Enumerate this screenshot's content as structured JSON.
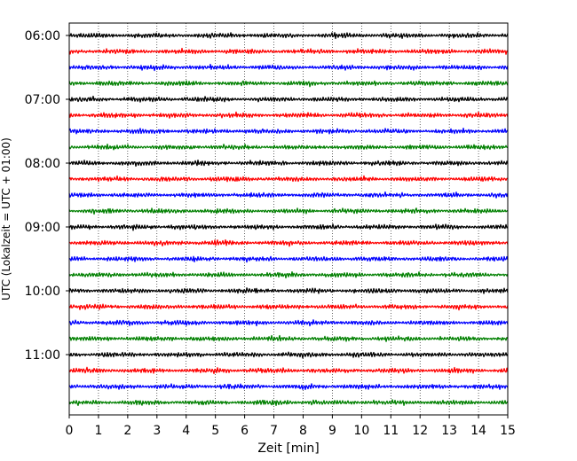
{
  "chart_data": {
    "type": "line",
    "title": "",
    "xlabel": "Zeit  [min]",
    "ylabel": "UTC (Lokalzeit = UTC + 01:00)",
    "xlim": [
      0,
      15
    ],
    "x_ticks": [
      "0",
      "1",
      "2",
      "3",
      "4",
      "5",
      "6",
      "7",
      "8",
      "9",
      "10",
      "11",
      "12",
      "13",
      "14",
      "15"
    ],
    "y_ticks": [
      "06:00",
      "07:00",
      "08:00",
      "09:00",
      "10:00",
      "11:00"
    ],
    "grid": "vertical dotted",
    "trace_interval_minutes": 15,
    "trace_start": "06:00",
    "trace_count": 24,
    "trace_colors": [
      "#000000",
      "#ff0000",
      "#0000ff",
      "#008000"
    ]
  }
}
